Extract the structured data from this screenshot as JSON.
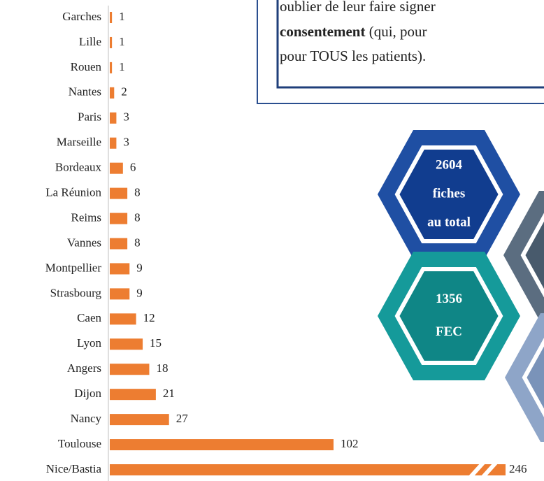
{
  "chart_data": {
    "type": "bar",
    "orientation": "horizontal",
    "categories": [
      "Garches",
      "Lille",
      "Rouen",
      "Nantes",
      "Paris",
      "Marseille",
      "Bordeaux",
      "La Réunion",
      "Reims",
      "Vannes",
      "Montpellier",
      "Strasbourg",
      "Caen",
      "Lyon",
      "Angers",
      "Dijon",
      "Nancy",
      "Toulouse",
      "Nice/Bastia"
    ],
    "values": [
      1,
      1,
      1,
      2,
      3,
      3,
      6,
      8,
      8,
      8,
      9,
      9,
      12,
      15,
      18,
      21,
      27,
      102,
      246
    ],
    "color": "#ed7d31",
    "axis_break": true
  },
  "text_box": {
    "lines": [
      [
        {
          "text": "oublier de leur faire signer"
        }
      ],
      [
        {
          "text": "consentement",
          "bold": true
        },
        {
          "text": " (qui, pour"
        }
      ],
      [
        {
          "text": "pour TOUS les patients)."
        }
      ]
    ]
  },
  "hexagons": [
    {
      "lines": [
        "2604",
        "fiches",
        "au total"
      ],
      "color": "#1f4fa3",
      "inner": "#113d8f"
    },
    {
      "lines": [
        "1356",
        "FEC"
      ],
      "color": "#159a9a",
      "inner": "#0f8686"
    }
  ]
}
